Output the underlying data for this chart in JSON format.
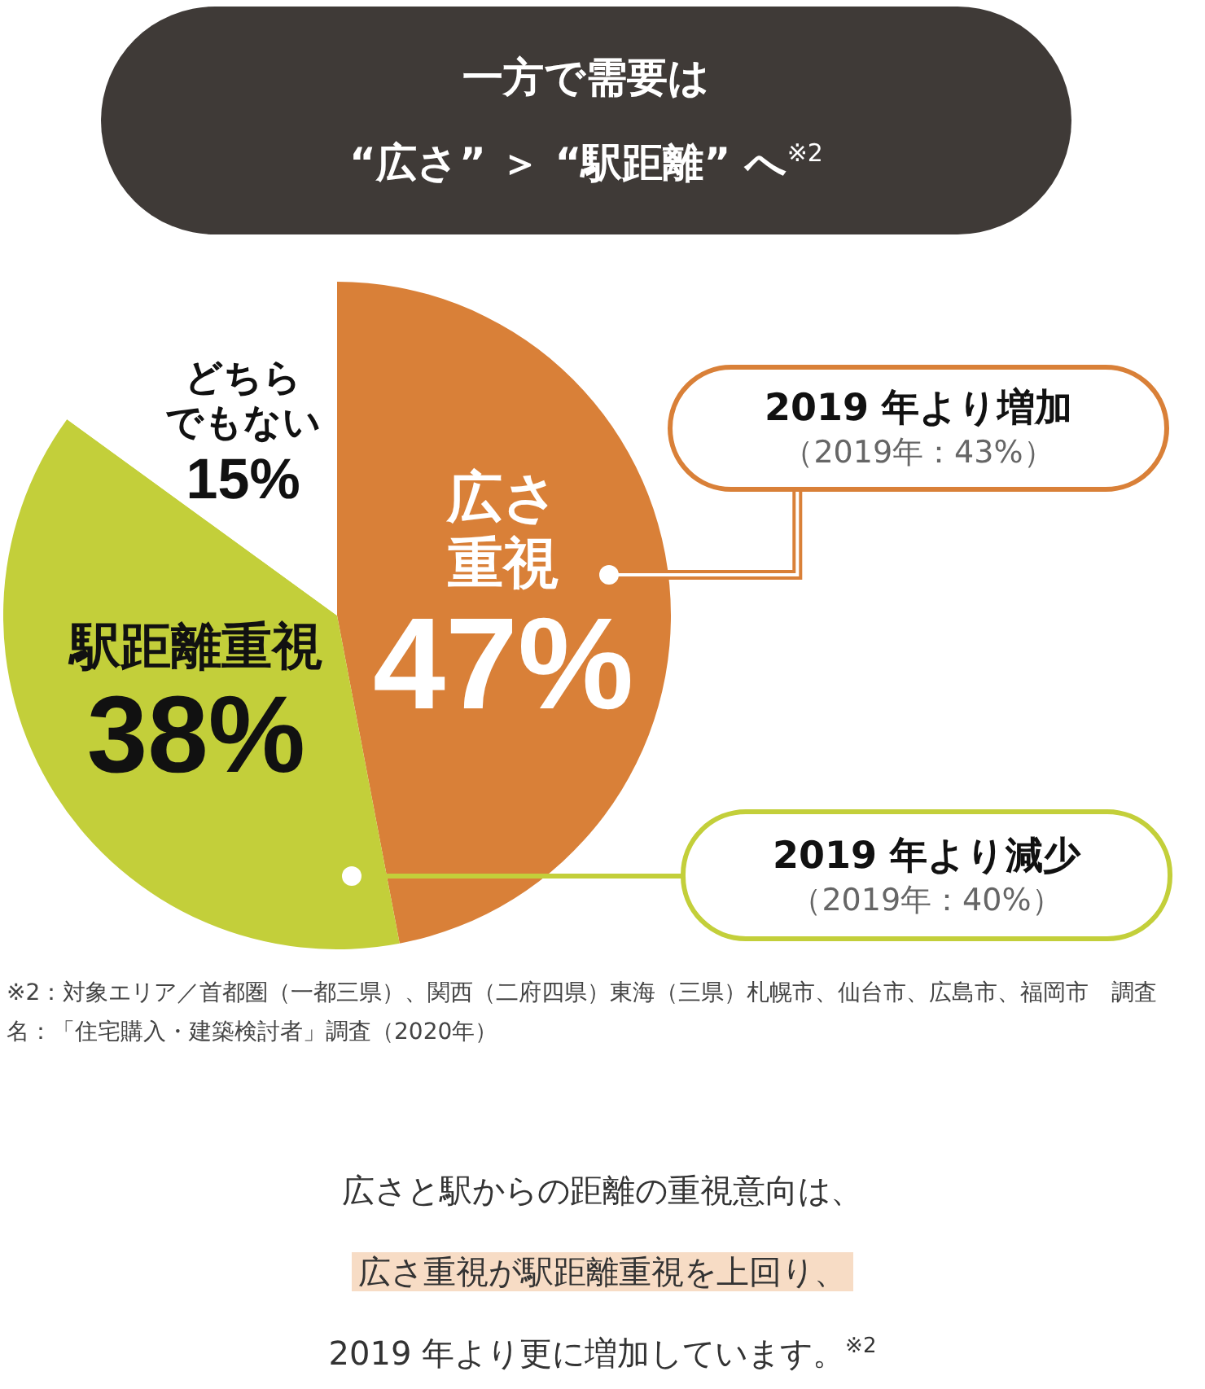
{
  "chart_data": {
    "type": "pie",
    "title": "一方で需要は\n“広さ” ＞ “駅距離” へ$^{※2}$",
    "categories": [
      "広さ重視",
      "駅距離重視",
      "どちらでもない"
    ],
    "values": [
      47,
      38,
      15
    ],
    "value_labels": [
      "47%",
      "38%",
      "15%"
    ],
    "colors": [
      "#d98038",
      "#c3cf3a",
      "#ffffff"
    ],
    "annotations": [
      "2019 年より増加",
      "（2019年：43%）",
      "2019 年より減少",
      "（2019年：40%）",
      "※2：対象エリア／首都圏（一都三県）、関西（二府四県）東海（三県）札幌市、仙台市、広島市、福岡市　調査名：「住宅購入・建築検討者」調査（2020年）",
      "広さと駅からの距離の重視意向は、",
      "広さ重視が駅距離重視を上回り、",
      "2019 年より更に増加しています。$^{※2}$"
    ]
  }
}
